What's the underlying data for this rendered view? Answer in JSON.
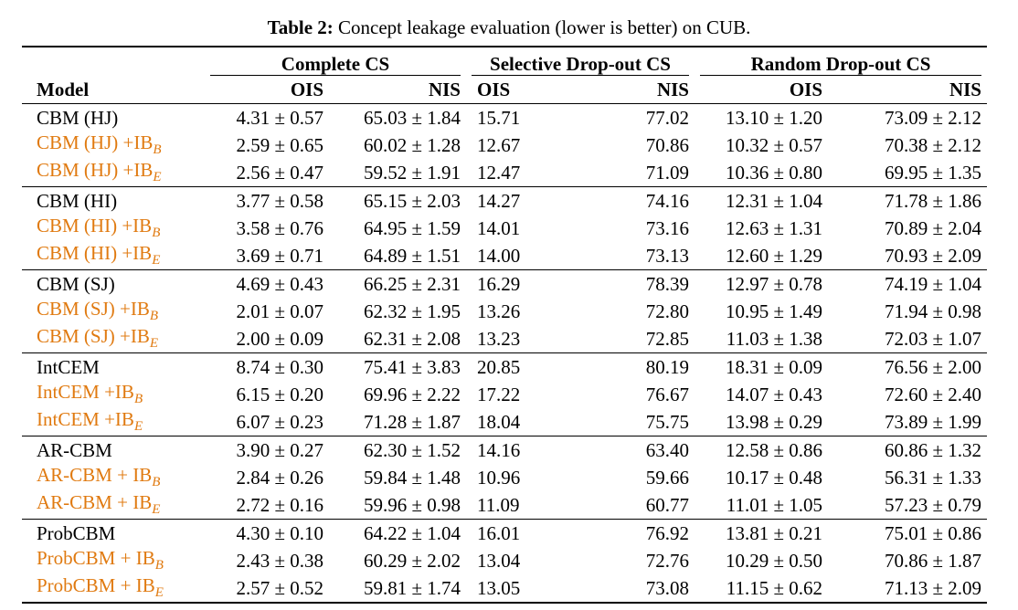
{
  "caption": {
    "label": "Table 2:",
    "text": "Concept leakage evaluation (lower is better) on CUB."
  },
  "header": {
    "model": "Model",
    "groups": [
      "Complete CS",
      "Selective Drop-out CS",
      "Random Drop-out CS"
    ],
    "ois": "OIS",
    "nis": "NIS"
  },
  "colors": {
    "ib_variant": "#e07a10",
    "text": "#000000"
  },
  "groups": [
    {
      "rows": [
        {
          "model": "CBM (HJ)",
          "suffix": "",
          "ib": false,
          "c_ois": "4.31 ± 0.57",
          "c_nis": "65.03 ± 1.84",
          "s_ois": "15.71",
          "s_nis": "77.02",
          "r_ois": "13.10 ± 1.20",
          "r_nis": "73.09 ± 2.12"
        },
        {
          "model": "CBM (HJ) +IB",
          "suffix": "B",
          "ib": true,
          "c_ois": "2.59 ± 0.65",
          "c_nis": "60.02 ± 1.28",
          "s_ois": "12.67",
          "s_nis": "70.86",
          "r_ois": "10.32 ± 0.57",
          "r_nis": "70.38 ± 2.12"
        },
        {
          "model": "CBM (HJ) +IB",
          "suffix": "E",
          "ib": true,
          "c_ois": "2.56 ± 0.47",
          "c_nis": "59.52 ± 1.91",
          "s_ois": "12.47",
          "s_nis": "71.09",
          "r_ois": "10.36 ± 0.80",
          "r_nis": "69.95 ± 1.35"
        }
      ]
    },
    {
      "rows": [
        {
          "model": "CBM (HI)",
          "suffix": "",
          "ib": false,
          "c_ois": "3.77 ± 0.58",
          "c_nis": "65.15 ± 2.03",
          "s_ois": "14.27",
          "s_nis": "74.16",
          "r_ois": "12.31 ± 1.04",
          "r_nis": "71.78 ± 1.86"
        },
        {
          "model": "CBM (HI) +IB",
          "suffix": "B",
          "ib": true,
          "c_ois": "3.58 ± 0.76",
          "c_nis": "64.95 ± 1.59",
          "s_ois": "14.01",
          "s_nis": "73.16",
          "r_ois": "12.63 ± 1.31",
          "r_nis": "70.89 ± 2.04"
        },
        {
          "model": "CBM (HI) +IB",
          "suffix": "E",
          "ib": true,
          "c_ois": "3.69 ± 0.71",
          "c_nis": "64.89 ± 1.51",
          "s_ois": "14.00",
          "s_nis": "73.13",
          "r_ois": "12.60 ± 1.29",
          "r_nis": "70.93 ± 2.09"
        }
      ]
    },
    {
      "rows": [
        {
          "model": "CBM (SJ)",
          "suffix": "",
          "ib": false,
          "c_ois": "4.69 ± 0.43",
          "c_nis": "66.25 ± 2.31",
          "s_ois": "16.29",
          "s_nis": "78.39",
          "r_ois": "12.97 ± 0.78",
          "r_nis": "74.19 ± 1.04"
        },
        {
          "model": "CBM (SJ) +IB",
          "suffix": "B",
          "ib": true,
          "c_ois": "2.01 ± 0.07",
          "c_nis": "62.32 ± 1.95",
          "s_ois": "13.26",
          "s_nis": "72.80",
          "r_ois": "10.95 ± 1.49",
          "r_nis": "71.94 ± 0.98"
        },
        {
          "model": "CBM (SJ) +IB",
          "suffix": "E",
          "ib": true,
          "c_ois": "2.00 ± 0.09",
          "c_nis": "62.31 ± 2.08",
          "s_ois": "13.23",
          "s_nis": "72.85",
          "r_ois": "11.03 ± 1.38",
          "r_nis": "72.03 ± 1.07"
        }
      ]
    },
    {
      "rows": [
        {
          "model": "IntCEM",
          "suffix": "",
          "ib": false,
          "c_ois": "8.74 ± 0.30",
          "c_nis": "75.41 ± 3.83",
          "s_ois": "20.85",
          "s_nis": "80.19",
          "r_ois": "18.31 ± 0.09",
          "r_nis": "76.56 ± 2.00"
        },
        {
          "model": "IntCEM +IB",
          "suffix": "B",
          "ib": true,
          "c_ois": "6.15 ± 0.20",
          "c_nis": "69.96 ± 2.22",
          "s_ois": "17.22",
          "s_nis": "76.67",
          "r_ois": "14.07 ± 0.43",
          "r_nis": "72.60 ± 2.40"
        },
        {
          "model": "IntCEM +IB",
          "suffix": "E",
          "ib": true,
          "c_ois": "6.07 ± 0.23",
          "c_nis": "71.28 ± 1.87",
          "s_ois": "18.04",
          "s_nis": "75.75",
          "r_ois": "13.98 ± 0.29",
          "r_nis": "73.89 ± 1.99"
        }
      ]
    },
    {
      "rows": [
        {
          "model": "AR-CBM",
          "suffix": "",
          "ib": false,
          "c_ois": "3.90 ± 0.27",
          "c_nis": "62.30 ± 1.52",
          "s_ois": "14.16",
          "s_nis": "63.40",
          "r_ois": "12.58 ± 0.86",
          "r_nis": "60.86 ± 1.32"
        },
        {
          "model": "AR-CBM + IB",
          "suffix": "B",
          "ib": true,
          "c_ois": "2.84 ± 0.26",
          "c_nis": "59.84 ± 1.48",
          "s_ois": "10.96",
          "s_nis": "59.66",
          "r_ois": "10.17 ± 0.48",
          "r_nis": "56.31 ± 1.33"
        },
        {
          "model": "AR-CBM + IB",
          "suffix": "E",
          "ib": true,
          "c_ois": "2.72 ± 0.16",
          "c_nis": "59.96 ± 0.98",
          "s_ois": "11.09",
          "s_nis": "60.77",
          "r_ois": "11.01 ± 1.05",
          "r_nis": "57.23 ± 0.79"
        }
      ]
    },
    {
      "rows": [
        {
          "model": "ProbCBM",
          "suffix": "",
          "ib": false,
          "c_ois": "4.30 ± 0.10",
          "c_nis": "64.22 ± 1.04",
          "s_ois": "16.01",
          "s_nis": "76.92",
          "r_ois": "13.81 ± 0.21",
          "r_nis": "75.01 ± 0.86"
        },
        {
          "model": "ProbCBM + IB",
          "suffix": "B",
          "ib": true,
          "c_ois": "2.43 ± 0.38",
          "c_nis": "60.29 ± 2.02",
          "s_ois": "13.04",
          "s_nis": "72.76",
          "r_ois": "10.29 ± 0.50",
          "r_nis": "70.86 ± 1.87"
        },
        {
          "model": "ProbCBM + IB",
          "suffix": "E",
          "ib": true,
          "c_ois": "2.57 ± 0.52",
          "c_nis": "59.81 ± 1.74",
          "s_ois": "13.05",
          "s_nis": "73.08",
          "r_ois": "11.15 ± 0.62",
          "r_nis": "71.13 ± 2.09"
        }
      ]
    }
  ]
}
